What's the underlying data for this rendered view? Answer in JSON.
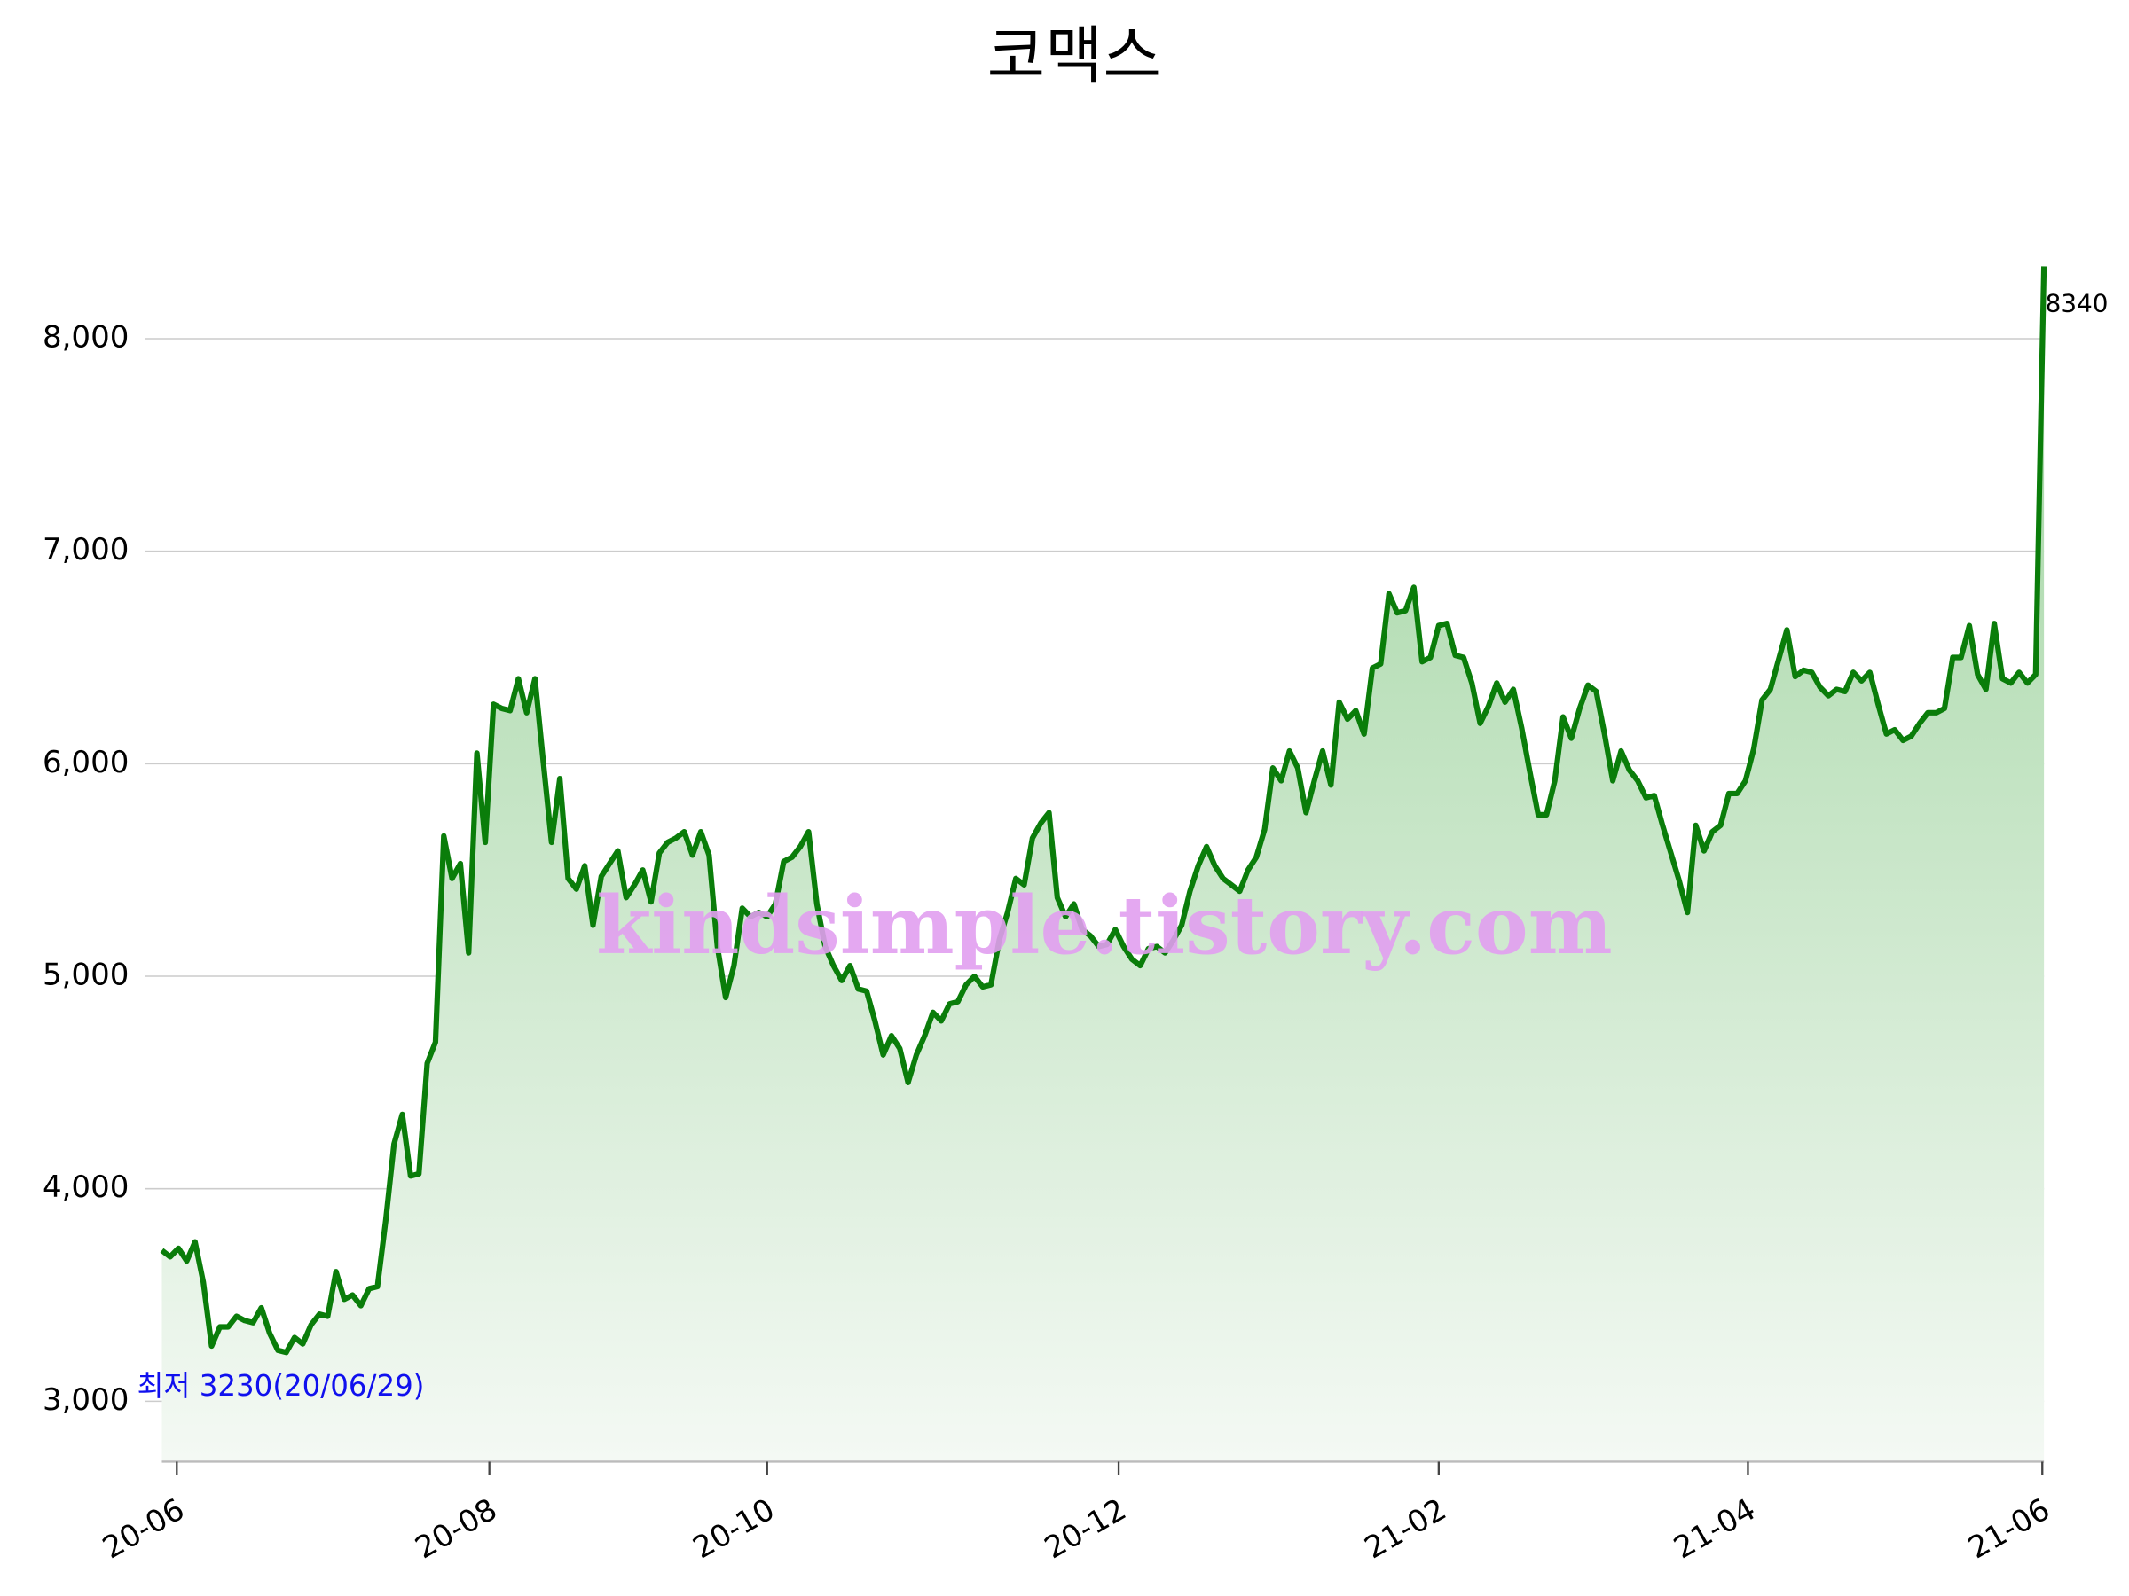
{
  "chart_data": {
    "type": "line",
    "title": "코맥스",
    "watermark": "kindsimple.tistory.com",
    "min_annotation": "최저 3230(20/06/29)",
    "last_annotation": "8340",
    "color": "#0a7d0a",
    "grid": true,
    "ylim": [
      2716,
      8355
    ],
    "yticks": [
      {
        "value": 3000,
        "label": "3,000"
      },
      {
        "value": 4000,
        "label": "4,000"
      },
      {
        "value": 5000,
        "label": "5,000"
      },
      {
        "value": 6000,
        "label": "6,000"
      },
      {
        "value": 7000,
        "label": "7,000"
      },
      {
        "value": 8000,
        "label": "8,000"
      }
    ],
    "xlim": [
      0,
      227
    ],
    "xticks": [
      {
        "value": 1.8,
        "label": "20-06"
      },
      {
        "value": 39.5,
        "label": "20-08"
      },
      {
        "value": 73,
        "label": "20-10"
      },
      {
        "value": 115.4,
        "label": "20-12"
      },
      {
        "value": 154,
        "label": "21-02"
      },
      {
        "value": 191.3,
        "label": "21-04"
      },
      {
        "value": 226.8,
        "label": "21-06"
      }
    ],
    "values": [
      3710,
      3680,
      3720,
      3660,
      3750,
      3560,
      3260,
      3350,
      3350,
      3400,
      3380,
      3370,
      3440,
      3320,
      3240,
      3230,
      3300,
      3270,
      3360,
      3410,
      3400,
      3610,
      3480,
      3500,
      3450,
      3530,
      3540,
      3850,
      4210,
      4350,
      4060,
      4070,
      4590,
      4690,
      5660,
      5460,
      5530,
      5110,
      6050,
      5630,
      6280,
      6260,
      6250,
      6400,
      6240,
      6400,
      6010,
      5630,
      5930,
      5460,
      5410,
      5520,
      5240,
      5470,
      5530,
      5590,
      5370,
      5430,
      5500,
      5350,
      5580,
      5630,
      5650,
      5680,
      5570,
      5680,
      5570,
      5140,
      4900,
      5050,
      5320,
      5280,
      5300,
      5280,
      5340,
      5540,
      5560,
      5610,
      5680,
      5340,
      5140,
      5050,
      4980,
      5050,
      4940,
      4930,
      4790,
      4630,
      4720,
      4660,
      4500,
      4630,
      4720,
      4830,
      4790,
      4870,
      4880,
      4960,
      5000,
      4950,
      4960,
      5170,
      5300,
      5460,
      5430,
      5650,
      5720,
      5770,
      5370,
      5280,
      5340,
      5220,
      5190,
      5140,
      5150,
      5220,
      5140,
      5080,
      5050,
      5130,
      5140,
      5110,
      5170,
      5240,
      5400,
      5520,
      5610,
      5520,
      5460,
      5430,
      5400,
      5500,
      5560,
      5690,
      5980,
      5920,
      6060,
      5980,
      5770,
      5920,
      6060,
      5900,
      6290,
      6210,
      6250,
      6140,
      6450,
      6470,
      6800,
      6710,
      6720,
      6830,
      6480,
      6500,
      6650,
      6660,
      6510,
      6500,
      6380,
      6190,
      6270,
      6380,
      6290,
      6350,
      6170,
      5960,
      5760,
      5760,
      5920,
      6220,
      6120,
      6260,
      6370,
      6340,
      6140,
      5920,
      6060,
      5970,
      5920,
      5840,
      5850,
      5710,
      5580,
      5450,
      5300,
      5710,
      5590,
      5680,
      5710,
      5860,
      5860,
      5920,
      6070,
      6300,
      6350,
      6490,
      6630,
      6410,
      6440,
      6430,
      6360,
      6320,
      6350,
      6340,
      6430,
      6390,
      6430,
      6280,
      6140,
      6160,
      6110,
      6130,
      6190,
      6240,
      6240,
      6260,
      6500,
      6500,
      6650,
      6420,
      6350,
      6660,
      6400,
      6380,
      6430,
      6380,
      6420,
      8340
    ]
  }
}
